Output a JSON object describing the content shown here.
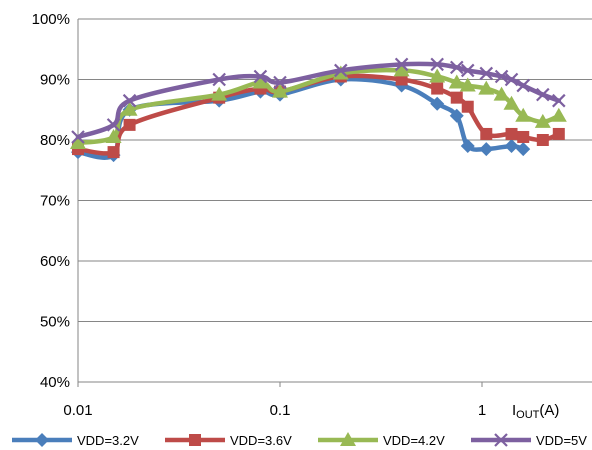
{
  "chart_data": {
    "type": "line",
    "x_scale": "log",
    "x_ticks": [
      {
        "value": 0.01,
        "label": "0.01"
      },
      {
        "value": 0.1,
        "label": "0.1"
      },
      {
        "value": 1,
        "label": "1"
      }
    ],
    "xlabel": {
      "main": "I",
      "sub": "OUT",
      "unit": "(A)"
    },
    "xlim": [
      0.01,
      2.6
    ],
    "ylim": [
      40,
      100
    ],
    "y_ticks": [
      {
        "value": 40,
        "label": "40%"
      },
      {
        "value": 50,
        "label": "50%"
      },
      {
        "value": 60,
        "label": "60%"
      },
      {
        "value": 70,
        "label": "70%"
      },
      {
        "value": 80,
        "label": "80%"
      },
      {
        "value": 90,
        "label": "90%"
      },
      {
        "value": 100,
        "label": "100%"
      }
    ],
    "grid": "horizontal",
    "legend_position": "bottom",
    "series": [
      {
        "name": "VDD=3.2V",
        "color": "#4a7ebb",
        "marker": "diamond",
        "points": [
          [
            0.01,
            78.0
          ],
          [
            0.015,
            77.5
          ],
          [
            0.018,
            85.0
          ],
          [
            0.05,
            86.5
          ],
          [
            0.08,
            88.0
          ],
          [
            0.1,
            87.5
          ],
          [
            0.2,
            90.0
          ],
          [
            0.4,
            89.0
          ],
          [
            0.6,
            86.0
          ],
          [
            0.75,
            84.0
          ],
          [
            0.85,
            79.0
          ],
          [
            1.05,
            78.5
          ],
          [
            1.4,
            79.0
          ],
          [
            1.6,
            78.5
          ]
        ]
      },
      {
        "name": "VDD=3.6V",
        "color": "#be4b48",
        "marker": "square",
        "points": [
          [
            0.01,
            78.5
          ],
          [
            0.015,
            78.0
          ],
          [
            0.018,
            82.5
          ],
          [
            0.05,
            87.0
          ],
          [
            0.08,
            88.5
          ],
          [
            0.1,
            88.0
          ],
          [
            0.2,
            90.5
          ],
          [
            0.4,
            90.0
          ],
          [
            0.6,
            88.5
          ],
          [
            0.75,
            87.0
          ],
          [
            0.85,
            85.5
          ],
          [
            1.05,
            81.0
          ],
          [
            1.4,
            81.0
          ],
          [
            1.6,
            80.5
          ],
          [
            2.0,
            80.0
          ],
          [
            2.4,
            81.0
          ]
        ]
      },
      {
        "name": "VDD=4.2V",
        "color": "#98b954",
        "marker": "triangle",
        "points": [
          [
            0.01,
            79.5
          ],
          [
            0.015,
            80.5
          ],
          [
            0.018,
            85.0
          ],
          [
            0.05,
            87.5
          ],
          [
            0.08,
            89.5
          ],
          [
            0.1,
            88.0
          ],
          [
            0.2,
            91.0
          ],
          [
            0.4,
            91.5
          ],
          [
            0.6,
            90.5
          ],
          [
            0.75,
            89.5
          ],
          [
            0.85,
            89.0
          ],
          [
            1.05,
            88.5
          ],
          [
            1.25,
            87.5
          ],
          [
            1.4,
            86.0
          ],
          [
            1.6,
            84.0
          ],
          [
            2.0,
            83.0
          ],
          [
            2.4,
            84.0
          ]
        ]
      },
      {
        "name": "VDD=5V",
        "color": "#7d60a0",
        "marker": "x",
        "points": [
          [
            0.01,
            80.5
          ],
          [
            0.015,
            82.5
          ],
          [
            0.018,
            86.5
          ],
          [
            0.05,
            90.0
          ],
          [
            0.08,
            90.5
          ],
          [
            0.1,
            89.5
          ],
          [
            0.2,
            91.5
          ],
          [
            0.4,
            92.5
          ],
          [
            0.6,
            92.5
          ],
          [
            0.75,
            92.0
          ],
          [
            0.85,
            91.5
          ],
          [
            1.05,
            91.0
          ],
          [
            1.25,
            90.5
          ],
          [
            1.4,
            90.0
          ],
          [
            1.6,
            89.0
          ],
          [
            2.0,
            87.5
          ],
          [
            2.4,
            86.5
          ]
        ]
      }
    ]
  }
}
